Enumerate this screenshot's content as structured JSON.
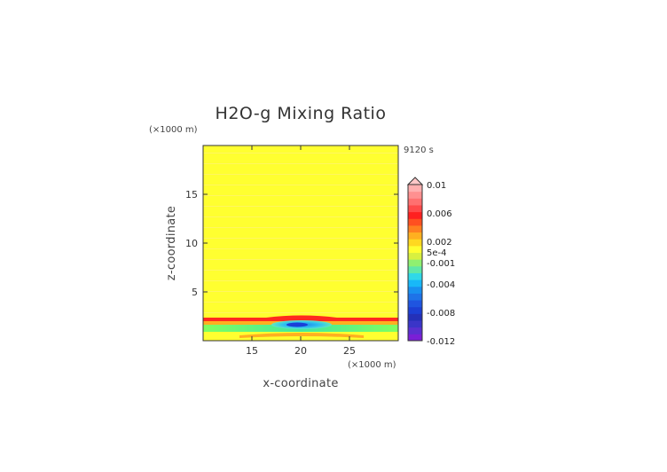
{
  "chart_data": {
    "type": "heatmap",
    "title": "H2O-g Mixing Ratio",
    "time_label": "9120 s",
    "xlabel": "x-coordinate",
    "ylabel": "z-coordinate",
    "x_unit": "(×1000 m)",
    "y_unit": "(×1000 m)",
    "xlim": [
      10,
      30
    ],
    "ylim": [
      0,
      20
    ],
    "x_ticks": [
      15,
      20,
      25
    ],
    "y_ticks": [
      5,
      10,
      15
    ],
    "grid": false,
    "legend_placement": "right",
    "colorbar": {
      "range": [
        -0.012,
        0.01
      ],
      "labels": [
        {
          "value": 0.01,
          "text": "0.01"
        },
        {
          "value": 0.006,
          "text": "0.006"
        },
        {
          "value": 0.002,
          "text": "0.002"
        },
        {
          "value": 0.0005,
          "text": "5e-4"
        },
        {
          "value": -0.001,
          "text": "-0.001"
        },
        {
          "value": -0.004,
          "text": "-0.004"
        },
        {
          "value": -0.008,
          "text": "-0.008"
        },
        {
          "value": -0.012,
          "text": "-0.012"
        }
      ],
      "colors": [
        "#7a1fd6",
        "#5a2fd0",
        "#3a35c8",
        "#2430b8",
        "#1c3fd4",
        "#1f55e0",
        "#1e73e8",
        "#1890f0",
        "#18b8f8",
        "#30d8e8",
        "#60e8a8",
        "#90f070",
        "#d8f040",
        "#ffff30",
        "#ffd820",
        "#ffb020",
        "#ff8020",
        "#ff5020",
        "#ff2020",
        "#ff4a4a",
        "#ff7070",
        "#ff9090",
        "#ffb0b0"
      ],
      "extend_top": true
    },
    "field": {
      "background_level": "yellow",
      "bands": [
        {
          "z": 2.1,
          "label": "red ridge"
        },
        {
          "z": 1.2,
          "label": "green layer"
        },
        {
          "z": 0.4,
          "label": "orange near surface"
        }
      ],
      "minimum_center": {
        "x": 20,
        "z": 1.8
      }
    }
  }
}
